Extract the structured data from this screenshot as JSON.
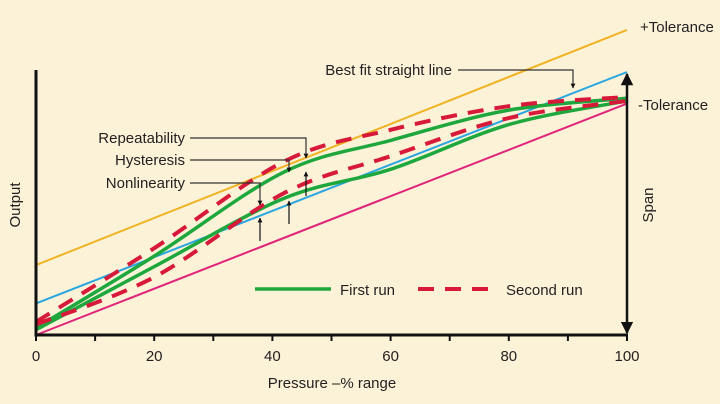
{
  "chart_data": {
    "type": "line",
    "title": "",
    "xlabel": "Pressure –% range",
    "ylabel": "Output",
    "xlim": [
      0,
      100
    ],
    "ylim": [
      0,
      120
    ],
    "grid": false,
    "legend_placement": "bottom-right",
    "x_ticks": [
      0,
      10,
      20,
      30,
      40,
      50,
      60,
      70,
      80,
      90,
      100
    ],
    "x_tick_labels": [
      "0",
      "20",
      "40",
      "60",
      "80",
      "100"
    ],
    "reference_lines": [
      {
        "name": "+Tolerance",
        "color": "#f0b323",
        "x": [
          0,
          100
        ],
        "y": [
          26.6,
          116
        ]
      },
      {
        "name": "-Tolerance",
        "color": "#e2237a",
        "x": [
          0,
          100
        ],
        "y": [
          0,
          88
        ]
      },
      {
        "name": "Best fit straight line",
        "color": "#27a6df",
        "x": [
          0,
          100
        ],
        "y": [
          12,
          100
        ]
      }
    ],
    "series": [
      {
        "name": "First run",
        "color": "#1ea73c",
        "style": "solid",
        "x": [
          0,
          20,
          42,
          60,
          80,
          100
        ],
        "y_up": [
          2.7,
          30,
          62,
          74,
          85.5,
          90
        ],
        "y_down": [
          2,
          26,
          52,
          63,
          80,
          89
        ]
      },
      {
        "name": "Second run",
        "color": "#d7193a",
        "style": "dashed",
        "x": [
          0,
          20,
          42,
          60,
          80,
          100
        ],
        "y_up": [
          5,
          33,
          66,
          78,
          87,
          90.5
        ],
        "y_down": [
          4,
          22,
          54,
          68,
          82.5,
          89
        ]
      }
    ],
    "annotations": {
      "best_fit": "Best fit straight line",
      "repeatability": "Repeatability",
      "hysteresis": "Hysteresis",
      "nonlinearity": "Nonlinearity",
      "plus_tolerance": "+Tolerance",
      "minus_tolerance": "-Tolerance",
      "span": "Span"
    },
    "legend": [
      "First run",
      "Second run"
    ]
  }
}
